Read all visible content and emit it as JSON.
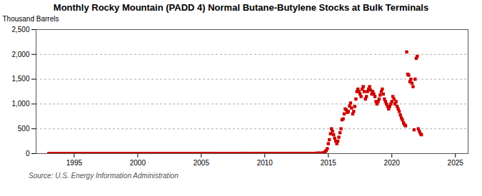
{
  "chart_data": {
    "type": "scatter",
    "title": "Monthly Rocky Mountain (PADD 4) Normal Butane-Butylene Stocks at Bulk Terminals",
    "ylabel": "Thousand Barrels",
    "source": "Source: U.S. Energy Information Administration",
    "color": "#cc0000",
    "marker": "square",
    "grid": "y",
    "xlim": [
      1992,
      2026
    ],
    "ylim": [
      0,
      2500
    ],
    "xticks": [
      1995,
      2000,
      2005,
      2010,
      2015,
      2020,
      2025
    ],
    "yticks": [
      0,
      500,
      {
        "value": 1000,
        "label": "1,000"
      },
      {
        "value": 1500,
        "label": "1,500"
      },
      {
        "value": 2000,
        "label": "2,000"
      },
      {
        "value": 2500,
        "label": "2,500"
      }
    ],
    "x": [
      1993.0,
      1993.1,
      1993.2,
      1993.3,
      1993.4,
      1993.5,
      1993.6,
      1993.7,
      1993.8,
      1993.9,
      1993.95,
      1994.0,
      1994.1,
      1994.2,
      1994.3,
      1994.4,
      1994.5,
      1994.6,
      1994.7,
      1994.8,
      1994.9,
      1994.95,
      1995.0,
      1995.1,
      1995.2,
      1995.3,
      1995.4,
      1995.5,
      1995.6,
      1995.7,
      1995.8,
      1995.9,
      1995.95,
      1996.0,
      1996.1,
      1996.2,
      1996.3,
      1996.4,
      1996.5,
      1996.6,
      1996.7,
      1996.8,
      1996.9,
      1996.95,
      1997.0,
      1997.1,
      1997.2,
      1997.3,
      1997.4,
      1997.5,
      1997.6,
      1997.7,
      1997.8,
      1997.9,
      1997.95,
      1998.0,
      1998.1,
      1998.2,
      1998.3,
      1998.4,
      1998.5,
      1998.6,
      1998.7,
      1998.8,
      1998.9,
      1998.95,
      1999.0,
      1999.1,
      1999.2,
      1999.3,
      1999.4,
      1999.5,
      1999.6,
      1999.7,
      1999.8,
      1999.9,
      1999.95,
      2000.0,
      2000.1,
      2000.2,
      2000.3,
      2000.4,
      2000.5,
      2000.6,
      2000.7,
      2000.8,
      2000.9,
      2000.95,
      2001.0,
      2001.1,
      2001.2,
      2001.3,
      2001.4,
      2001.5,
      2001.6,
      2001.7,
      2001.8,
      2001.9,
      2001.95,
      2002.0,
      2002.1,
      2002.2,
      2002.3,
      2002.4,
      2002.5,
      2002.6,
      2002.7,
      2002.8,
      2002.9,
      2002.95,
      2003.0,
      2003.1,
      2003.2,
      2003.3,
      2003.4,
      2003.5,
      2003.6,
      2003.7,
      2003.8,
      2003.9,
      2003.95,
      2004.0,
      2004.1,
      2004.2,
      2004.3,
      2004.4,
      2004.5,
      2004.6,
      2004.7,
      2004.8,
      2004.9,
      2004.95,
      2005.0,
      2005.1,
      2005.2,
      2005.3,
      2005.4,
      2005.5,
      2005.6,
      2005.7,
      2005.8,
      2005.9,
      2005.95,
      2006.0,
      2006.1,
      2006.2,
      2006.3,
      2006.4,
      2006.5,
      2006.6,
      2006.7,
      2006.8,
      2006.9,
      2006.95,
      2007.0,
      2007.1,
      2007.2,
      2007.3,
      2007.4,
      2007.5,
      2007.6,
      2007.7,
      2007.8,
      2007.9,
      2007.95,
      2008.0,
      2008.1,
      2008.2,
      2008.3,
      2008.4,
      2008.5,
      2008.6,
      2008.7,
      2008.8,
      2008.9,
      2008.95,
      2009.0,
      2009.1,
      2009.2,
      2009.3,
      2009.4,
      2009.5,
      2009.6,
      2009.7,
      2009.8,
      2009.9,
      2009.95,
      2010.0,
      2010.1,
      2010.2,
      2010.3,
      2010.4,
      2010.5,
      2010.6,
      2010.7,
      2010.8,
      2010.9,
      2010.95,
      2011.0,
      2011.1,
      2011.2,
      2011.3,
      2011.4,
      2011.5,
      2011.6,
      2011.7,
      2011.8,
      2011.9,
      2011.95,
      2012.0,
      2012.1,
      2012.2,
      2012.3,
      2012.4,
      2012.5,
      2012.6,
      2012.7,
      2012.8,
      2012.9,
      2012.95,
      2013.0,
      2013.1,
      2013.2,
      2013.3,
      2013.4,
      2013.5,
      2013.6,
      2013.7,
      2013.8,
      2013.9,
      2013.95,
      2014.0,
      2014.08,
      2014.17,
      2014.25,
      2014.33,
      2014.42,
      2014.5,
      2014.58,
      2014.67,
      2014.75,
      2014.83,
      2014.92,
      2015.0,
      2015.08,
      2015.17,
      2015.25,
      2015.33,
      2015.42,
      2015.5,
      2015.58,
      2015.67,
      2015.75,
      2015.83,
      2015.92,
      2016.0,
      2016.08,
      2016.17,
      2016.25,
      2016.33,
      2016.42,
      2016.5,
      2016.58,
      2016.67,
      2016.75,
      2016.83,
      2016.92,
      2017.0,
      2017.08,
      2017.17,
      2017.25,
      2017.33,
      2017.42,
      2017.5,
      2017.58,
      2017.67,
      2017.75,
      2017.83,
      2017.92,
      2018.0,
      2018.08,
      2018.17,
      2018.25,
      2018.33,
      2018.42,
      2018.5,
      2018.58,
      2018.67,
      2018.75,
      2018.83,
      2018.92,
      2019.0,
      2019.08,
      2019.17,
      2019.25,
      2019.33,
      2019.42,
      2019.5,
      2019.58,
      2019.67,
      2019.75,
      2019.83,
      2019.92,
      2020.0,
      2020.08,
      2020.17,
      2020.25,
      2020.33,
      2020.42,
      2020.5,
      2020.58,
      2020.67,
      2020.75,
      2020.83,
      2020.92,
      2021.0,
      2021.08,
      2021.17,
      2021.25,
      2021.33,
      2021.42,
      2021.5,
      2021.58,
      2021.67,
      2021.75,
      2021.83,
      2021.92,
      2022.0,
      2022.08,
      2022.17,
      2022.25,
      2022.33
    ],
    "values": [
      2,
      1,
      2,
      1,
      2,
      1,
      2,
      1,
      2,
      1,
      2,
      1,
      2,
      1,
      2,
      1,
      2,
      1,
      2,
      1,
      2,
      1,
      2,
      1,
      2,
      1,
      2,
      1,
      2,
      1,
      2,
      1,
      2,
      1,
      2,
      1,
      2,
      1,
      2,
      1,
      2,
      1,
      2,
      1,
      2,
      1,
      2,
      1,
      2,
      1,
      2,
      1,
      2,
      1,
      2,
      1,
      2,
      1,
      2,
      1,
      2,
      1,
      2,
      1,
      2,
      1,
      2,
      1,
      2,
      1,
      2,
      1,
      2,
      1,
      2,
      1,
      2,
      1,
      2,
      1,
      2,
      1,
      2,
      1,
      2,
      1,
      2,
      1,
      2,
      1,
      2,
      1,
      2,
      1,
      2,
      1,
      2,
      1,
      2,
      1,
      2,
      1,
      2,
      1,
      2,
      1,
      2,
      1,
      2,
      1,
      2,
      1,
      2,
      1,
      2,
      1,
      2,
      1,
      2,
      1,
      2,
      1,
      2,
      1,
      2,
      1,
      2,
      1,
      2,
      1,
      2,
      1,
      2,
      5,
      2,
      1,
      2,
      1,
      2,
      1,
      5,
      2,
      1,
      2,
      1,
      2,
      1,
      2,
      1,
      2,
      1,
      2,
      1,
      2,
      1,
      2,
      1,
      2,
      1,
      2,
      1,
      2,
      1,
      2,
      1,
      2,
      1,
      5,
      2,
      1,
      5,
      2,
      1,
      2,
      1,
      2,
      1,
      2,
      5,
      2,
      1,
      5,
      2,
      1,
      5,
      2,
      1,
      2,
      5,
      2,
      1,
      2,
      5,
      2,
      1,
      2,
      5,
      2,
      1,
      2,
      5,
      2,
      1,
      5,
      2,
      1,
      2,
      5,
      2,
      1,
      2,
      5,
      2,
      1,
      5,
      2,
      1,
      5,
      2,
      1,
      2,
      5,
      2,
      1,
      5,
      2,
      1,
      5,
      2,
      1,
      2,
      5,
      8,
      5,
      10,
      8,
      5,
      8,
      12,
      20,
      40,
      60,
      100,
      200,
      280,
      400,
      500,
      450,
      380,
      310,
      250,
      200,
      250,
      330,
      420,
      500,
      680,
      700,
      800,
      900,
      880,
      830,
      850,
      960,
      1020,
      920,
      800,
      850,
      950,
      1100,
      1250,
      1300,
      1250,
      1200,
      1150,
      1300,
      1350,
      1250,
      1100,
      1150,
      1250,
      1300,
      1350,
      1280,
      1200,
      1250,
      1200,
      1150,
      1050,
      1000,
      1050,
      1100,
      1180,
      1250,
      1300,
      1200,
      1100,
      1050,
      1000,
      950,
      900,
      950,
      1000,
      1050,
      1150,
      1100,
      1000,
      1050,
      950,
      900,
      850,
      780,
      720,
      680,
      620,
      580,
      560,
      2050,
      1600,
      1580,
      1450,
      1500,
      1420,
      1350,
      480,
      1500,
      1920,
      1960,
      500,
      450,
      400,
      380
    ]
  }
}
